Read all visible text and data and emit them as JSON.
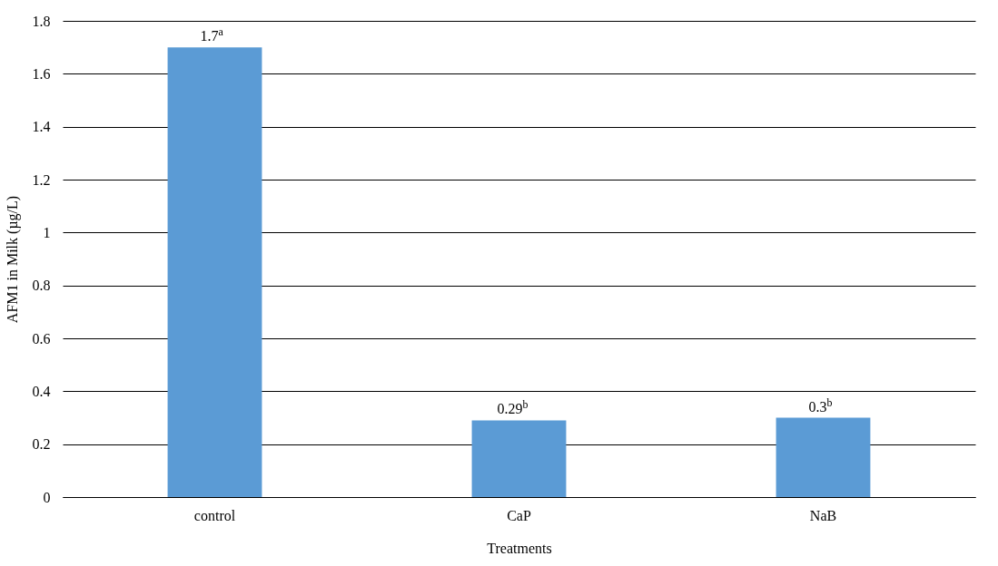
{
  "chart_data": {
    "type": "bar",
    "xlabel": "Treatments",
    "ylabel": "AFM1 in Milk (µg/L)",
    "categories": [
      "control",
      "CaP",
      "NaB"
    ],
    "values": [
      1.7,
      0.29,
      0.3
    ],
    "value_labels": [
      "1.7$^{a}$",
      "0.29$^{b}$",
      "0.3$^{b}$"
    ],
    "color": "#5b9bd5",
    "ylim": [
      0,
      1.8
    ],
    "yticks": [
      0,
      0.2,
      0.4,
      0.6,
      0.8,
      1,
      1.2,
      1.4,
      1.6,
      1.8
    ],
    "grid": "y"
  }
}
